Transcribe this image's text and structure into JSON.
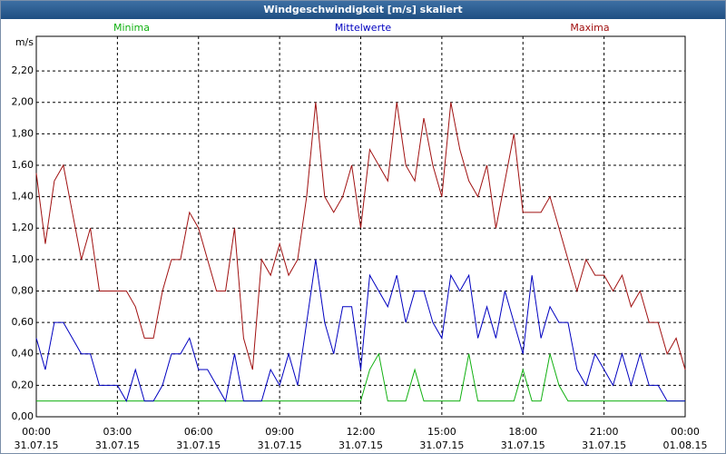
{
  "chart_data": {
    "type": "line",
    "title": "Windgeschwindigkeit [m/s] skaliert",
    "y_unit": "m/s",
    "x": [
      0,
      20,
      40,
      60,
      80,
      100,
      120,
      140,
      160,
      180,
      200,
      220,
      240,
      260,
      280,
      300,
      320,
      340,
      360,
      380,
      400,
      420,
      440,
      460,
      480,
      500,
      520,
      540,
      560,
      580,
      600,
      620,
      640,
      660,
      680,
      700,
      720,
      740,
      760,
      780,
      800,
      820,
      840,
      860,
      880,
      900,
      920,
      940,
      960,
      980,
      1000,
      1020,
      1040,
      1060,
      1080,
      1100,
      1120,
      1140,
      1160,
      1180,
      1200,
      1220,
      1240,
      1260,
      1280,
      1300,
      1320,
      1340,
      1360,
      1380,
      1400,
      1420,
      1440
    ],
    "xlim": [
      0,
      1440
    ],
    "xticks": [
      {
        "value": 0,
        "label": "00:00",
        "date": "31.07.15"
      },
      {
        "value": 180,
        "label": "03:00",
        "date": "31.07.15"
      },
      {
        "value": 360,
        "label": "06:00",
        "date": "31.07.15"
      },
      {
        "value": 540,
        "label": "09:00",
        "date": "31.07.15"
      },
      {
        "value": 720,
        "label": "12:00",
        "date": "31.07.15"
      },
      {
        "value": 900,
        "label": "15:00",
        "date": "31.07.15"
      },
      {
        "value": 1080,
        "label": "18:00",
        "date": "31.07.15"
      },
      {
        "value": 1260,
        "label": "21:00",
        "date": "31.07.15"
      },
      {
        "value": 1440,
        "label": "00:00",
        "date": "01.08.15"
      }
    ],
    "ylim": [
      0,
      2.42
    ],
    "yticks": [
      {
        "value": 0,
        "label": "0,00"
      },
      {
        "value": 0.2,
        "label": "0,20"
      },
      {
        "value": 0.4,
        "label": "0,40"
      },
      {
        "value": 0.6,
        "label": "0,60"
      },
      {
        "value": 0.8,
        "label": "0,80"
      },
      {
        "value": 1.0,
        "label": "1,00"
      },
      {
        "value": 1.2,
        "label": "1,20"
      },
      {
        "value": 1.4,
        "label": "1,40"
      },
      {
        "value": 1.6,
        "label": "1,60"
      },
      {
        "value": 1.8,
        "label": "1,80"
      },
      {
        "value": 2.0,
        "label": "2,00"
      },
      {
        "value": 2.2,
        "label": "2,20"
      }
    ],
    "grid": true,
    "series": [
      {
        "name": "Minima",
        "color": "#10b010",
        "values": [
          0.1,
          0.1,
          0.1,
          0.1,
          0.1,
          0.1,
          0.1,
          0.1,
          0.1,
          0.1,
          0.1,
          0.1,
          0.1,
          0.1,
          0.1,
          0.1,
          0.1,
          0.1,
          0.1,
          0.1,
          0.1,
          0.1,
          0.1,
          0.1,
          0.1,
          0.1,
          0.1,
          0.1,
          0.1,
          0.1,
          0.1,
          0.1,
          0.1,
          0.1,
          0.1,
          0.1,
          0.1,
          0.3,
          0.4,
          0.1,
          0.1,
          0.1,
          0.3,
          0.1,
          0.1,
          0.1,
          0.1,
          0.1,
          0.4,
          0.1,
          0.1,
          0.1,
          0.1,
          0.1,
          0.3,
          0.1,
          0.1,
          0.4,
          0.2,
          0.1,
          0.1,
          0.1,
          0.1,
          0.1,
          0.1,
          0.1,
          0.1,
          0.1,
          0.1,
          0.1,
          0.1,
          0.1,
          0.1
        ]
      },
      {
        "name": "Mittelwerte",
        "color": "#0000c0",
        "values": [
          0.5,
          0.3,
          0.6,
          0.6,
          0.5,
          0.4,
          0.4,
          0.2,
          0.2,
          0.2,
          0.1,
          0.3,
          0.1,
          0.1,
          0.2,
          0.4,
          0.4,
          0.5,
          0.3,
          0.3,
          0.2,
          0.1,
          0.4,
          0.1,
          0.1,
          0.1,
          0.3,
          0.2,
          0.4,
          0.2,
          0.6,
          1.0,
          0.6,
          0.4,
          0.7,
          0.7,
          0.3,
          0.9,
          0.8,
          0.7,
          0.9,
          0.6,
          0.8,
          0.8,
          0.6,
          0.5,
          0.9,
          0.8,
          0.9,
          0.5,
          0.7,
          0.5,
          0.8,
          0.6,
          0.4,
          0.9,
          0.5,
          0.7,
          0.6,
          0.6,
          0.3,
          0.2,
          0.4,
          0.3,
          0.2,
          0.4,
          0.2,
          0.4,
          0.2,
          0.2,
          0.1,
          0.1,
          0.1
        ]
      },
      {
        "name": "Maxima",
        "color": "#a01010",
        "values": [
          1.55,
          1.1,
          1.5,
          1.6,
          1.3,
          1.0,
          1.2,
          0.8,
          0.8,
          0.8,
          0.8,
          0.7,
          0.5,
          0.5,
          0.8,
          1.0,
          1.0,
          1.3,
          1.2,
          1.0,
          0.8,
          0.8,
          1.2,
          0.5,
          0.3,
          1.0,
          0.9,
          1.1,
          0.9,
          1.0,
          1.4,
          2.0,
          1.4,
          1.3,
          1.4,
          1.6,
          1.2,
          1.7,
          1.6,
          1.5,
          2.0,
          1.6,
          1.5,
          1.9,
          1.6,
          1.4,
          2.0,
          1.7,
          1.5,
          1.4,
          1.6,
          1.2,
          1.5,
          1.8,
          1.3,
          1.3,
          1.3,
          1.4,
          1.2,
          1.0,
          0.8,
          1.0,
          0.9,
          0.9,
          0.8,
          0.9,
          0.7,
          0.8,
          0.6,
          0.6,
          0.4,
          0.5,
          0.3
        ]
      }
    ]
  }
}
